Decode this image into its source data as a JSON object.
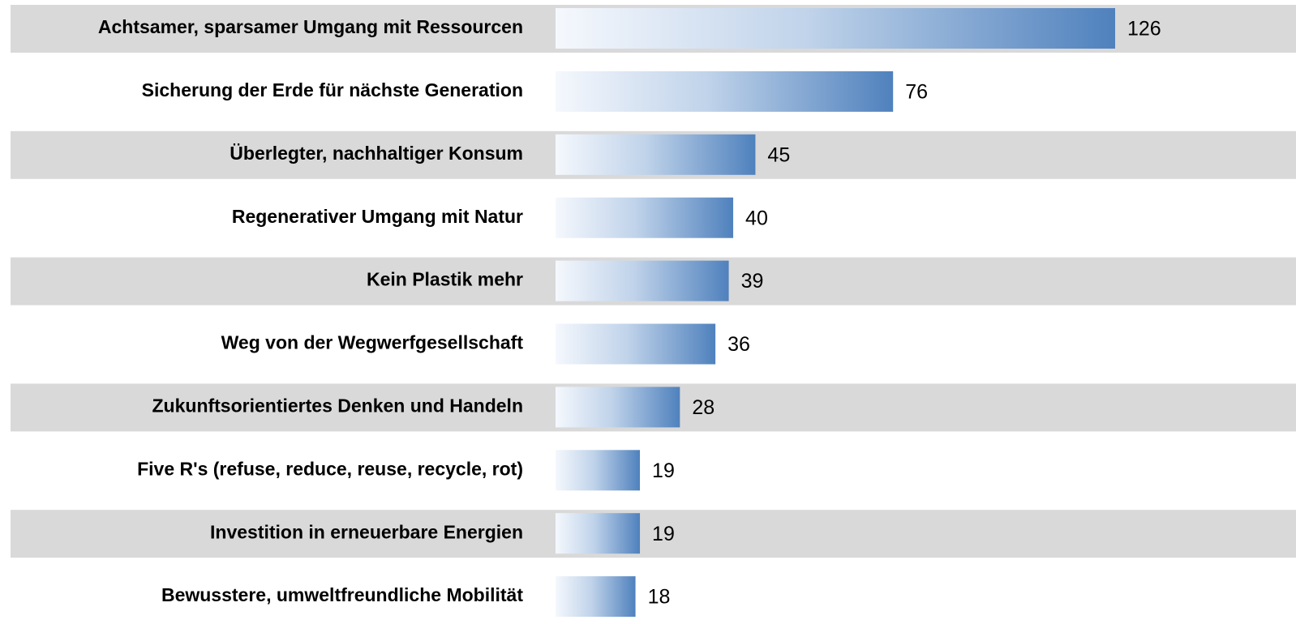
{
  "chart_data": {
    "type": "bar",
    "orientation": "horizontal",
    "categories": [
      "Achtsamer, sparsamer Umgang mit Ressourcen",
      "Sicherung der Erde für nächste Generation",
      "Überlegter, nachhaltiger Konsum",
      "Regenerativer Umgang mit Natur",
      "Kein Plastik mehr",
      "Weg von der Wegwerfgesellschaft",
      "Zukunftsorientiertes Denken und Handeln",
      "Five R's (refuse, reduce, reuse, recycle, rot)",
      "Investition in erneuerbare Energien",
      "Bewusstere, umweltfreundliche Mobilität"
    ],
    "values": [
      126,
      76,
      45,
      40,
      39,
      36,
      28,
      19,
      19,
      18
    ],
    "color": "#4f81bd"
  }
}
